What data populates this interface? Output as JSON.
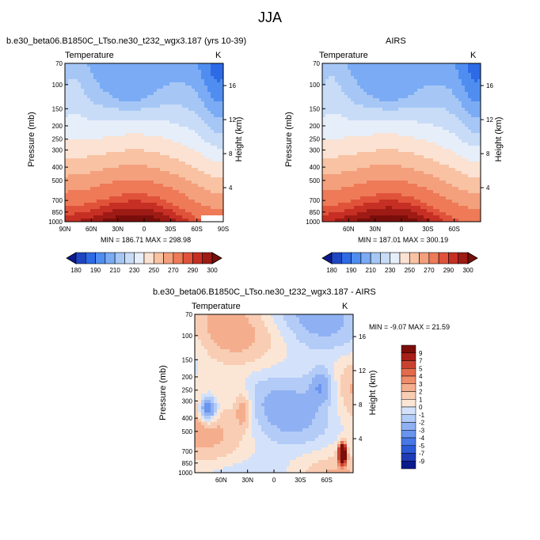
{
  "figure": {
    "title": "JJA",
    "colormap_temp": [
      "#0b1a8c",
      "#1f46c2",
      "#2d6ae6",
      "#4f8ef0",
      "#7aabf4",
      "#a6c7f6",
      "#c8dcf7",
      "#e6eefa",
      "#fbe2d2",
      "#f8c2a3",
      "#f4a07d",
      "#ee7a58",
      "#e0533a",
      "#c62f24",
      "#9e1a14",
      "#7a0e0a"
    ],
    "colormap_diff": [
      "#0b1a8c",
      "#1f3bb5",
      "#2d5ad6",
      "#4878e6",
      "#6a95ee",
      "#8fb1f3",
      "#b3cbf7",
      "#d3e2fa",
      "#fbe6d6",
      "#f8cdb3",
      "#f4ae8e",
      "#ef8c69",
      "#e36a4b",
      "#c94230",
      "#a61f18",
      "#7a0e0a"
    ]
  },
  "chart_data": [
    {
      "type": "heatmap",
      "title": "b.e30_beta06.B1850C_LTso.ne30_t232_wgx3.187 (yrs 10-39)",
      "left_label": "Temperature",
      "right_label": "K",
      "xlabel": "",
      "ylabel": "Pressure (mb)",
      "y2label": "Height (km)",
      "x_ticks": [
        "90N",
        "60N",
        "30N",
        "0",
        "30S",
        "60S",
        "90S"
      ],
      "y_ticks": [
        "70",
        "100",
        "150",
        "200",
        "250",
        "300",
        "400",
        "500",
        "700",
        "850",
        "1000"
      ],
      "y2_ticks": [
        "16",
        "12",
        "8",
        "4"
      ],
      "stats": "MIN = 186.71   MAX = 298.98",
      "colorbar_labels": [
        "180",
        "190",
        "210",
        "230",
        "250",
        "270",
        "290",
        "300"
      ],
      "value_range": [
        186.71,
        298.98
      ]
    },
    {
      "type": "heatmap",
      "title": "AIRS",
      "left_label": "Temperature",
      "right_label": "K",
      "xlabel": "",
      "ylabel": "Pressure (mb)",
      "y2label": "Height (km)",
      "x_ticks": [
        "60N",
        "30N",
        "0",
        "30S",
        "60S"
      ],
      "y_ticks": [
        "70",
        "100",
        "150",
        "200",
        "250",
        "300",
        "400",
        "500",
        "700",
        "850",
        "1000"
      ],
      "y2_ticks": [
        "16",
        "12",
        "8",
        "4"
      ],
      "stats": "MIN = 187.01   MAX = 300.19",
      "colorbar_labels": [
        "180",
        "190",
        "210",
        "230",
        "250",
        "270",
        "290",
        "300"
      ],
      "value_range": [
        187.01,
        300.19
      ]
    },
    {
      "type": "heatmap",
      "title": "b.e30_beta06.B1850C_LTso.ne30_t232_wgx3.187 - AIRS",
      "left_label": "Temperature",
      "right_label": "K",
      "xlabel": "",
      "ylabel": "Pressure (mb)",
      "y2label": "Height (km)",
      "x_ticks": [
        "60N",
        "30N",
        "0",
        "30S",
        "60S"
      ],
      "y_ticks": [
        "70",
        "100",
        "150",
        "200",
        "250",
        "300",
        "400",
        "500",
        "700",
        "850",
        "1000"
      ],
      "y2_ticks": [
        "16",
        "12",
        "8",
        "4"
      ],
      "stats": "MIN = -9.07  MAX = 21.59",
      "colorbar_labels": [
        "9",
        "7",
        "5",
        "4",
        "3",
        "2",
        "1",
        "0",
        "-1",
        "-2",
        "-3",
        "-4",
        "-5",
        "-7",
        "-9"
      ],
      "value_range": [
        -9.07,
        21.59
      ]
    }
  ]
}
